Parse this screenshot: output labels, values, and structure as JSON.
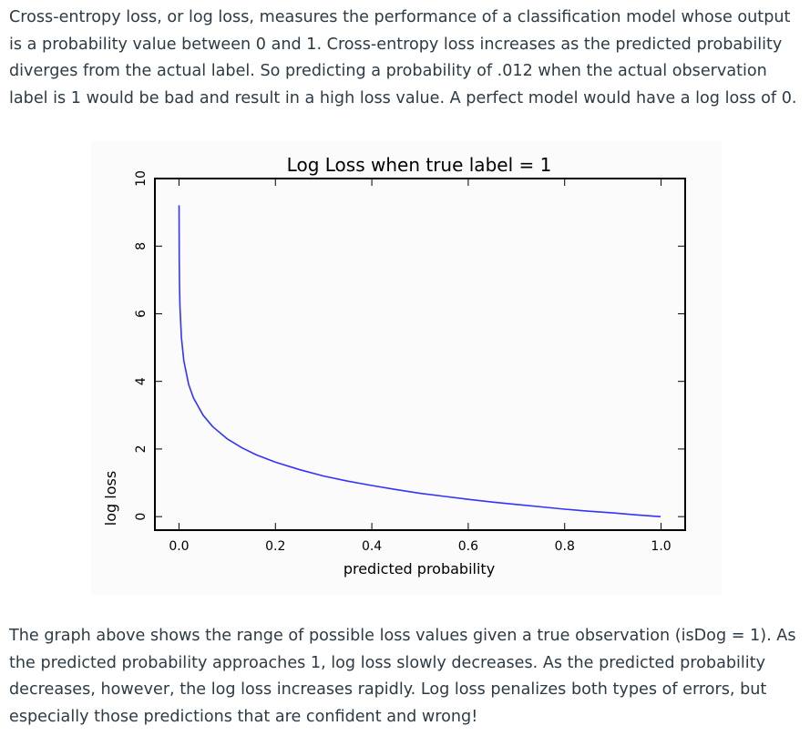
{
  "paragraphs": {
    "intro": "Cross-entropy loss, or log loss, measures the performance of a classification model whose output is a probability value between 0 and 1. Cross-entropy loss increases as the predicted probability diverges from the actual label. So predicting a probability of .012 when the actual observation label is 1 would be bad and result in a high loss value. A perfect model would have a log loss of 0.",
    "outro": "The graph above shows the range of possible loss values given a true observation (isDog = 1). As the predicted probability approaches 1, log loss slowly decreases. As the predicted probability decreases, however, the log loss increases rapidly. Log loss penalizes both types of errors, but especially those predictions that are confident and wrong!"
  },
  "chart_data": {
    "type": "line",
    "title": "Log Loss when true label = 1",
    "xlabel": "predicted probability",
    "ylabel": "log loss",
    "xlim": [
      -0.05,
      1.05
    ],
    "ylim": [
      -0.4,
      10
    ],
    "xticks": [
      0.0,
      0.2,
      0.4,
      0.6,
      0.8,
      1.0
    ],
    "xtick_labels": [
      "0.0",
      "0.2",
      "0.4",
      "0.6",
      "0.8",
      "1.0"
    ],
    "yticks": [
      0,
      2,
      4,
      6,
      8,
      10
    ],
    "ytick_labels": [
      "0",
      "2",
      "4",
      "6",
      "8",
      "10"
    ],
    "grid": false,
    "series": [
      {
        "color": "#3333ff",
        "function": "-ln(x)",
        "x": [
          0.0001,
          0.0005,
          0.001,
          0.002,
          0.005,
          0.01,
          0.02,
          0.03,
          0.05,
          0.07,
          0.1,
          0.13,
          0.16,
          0.2,
          0.25,
          0.3,
          0.35,
          0.4,
          0.45,
          0.5,
          0.55,
          0.6,
          0.65,
          0.7,
          0.75,
          0.8,
          0.85,
          0.9,
          0.95,
          0.999
        ],
        "y": [
          9.21,
          7.6,
          6.91,
          6.21,
          5.3,
          4.61,
          3.91,
          3.51,
          3.0,
          2.66,
          2.3,
          2.04,
          1.83,
          1.61,
          1.39,
          1.2,
          1.05,
          0.92,
          0.8,
          0.69,
          0.6,
          0.51,
          0.43,
          0.36,
          0.29,
          0.22,
          0.16,
          0.11,
          0.05,
          0.0
        ]
      }
    ]
  }
}
